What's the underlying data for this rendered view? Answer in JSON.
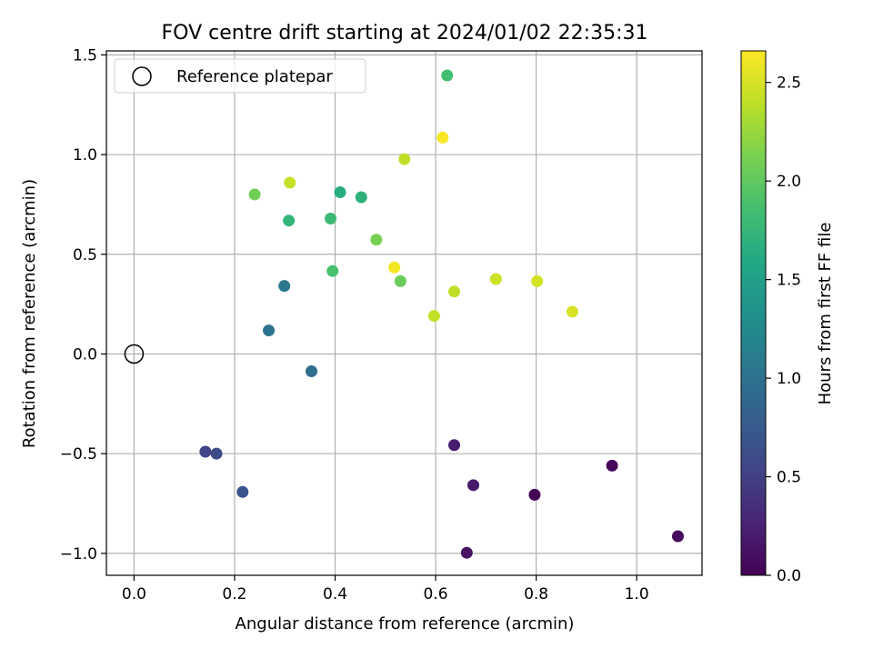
{
  "chart_data": {
    "type": "scatter",
    "title": "FOV centre drift starting at 2024/01/02 22:35:31",
    "xlabel": "Angular distance from reference (arcmin)",
    "ylabel": "Rotation from reference (arcmin)",
    "xlim": [
      -0.055,
      1.13
    ],
    "ylim": [
      -1.11,
      1.52
    ],
    "xticks": [
      "0.0",
      "0.2",
      "0.4",
      "0.6",
      "0.8",
      "1.0"
    ],
    "yticks": [
      "−1.0",
      "−0.5",
      "0.0",
      "0.5",
      "1.0",
      "1.5"
    ],
    "grid": true,
    "legend": {
      "placement": "top-left",
      "entries": [
        "Reference platepar"
      ]
    },
    "reference_point": {
      "x": 0.0,
      "y": 0.0
    },
    "colorbar": {
      "label": "Hours from first FF file",
      "range": [
        0.0,
        2.66
      ],
      "colormap": "viridis",
      "ticks": [
        "0.0",
        "0.5",
        "1.0",
        "1.5",
        "2.0",
        "2.5"
      ]
    },
    "points": [
      {
        "x": 0.797,
        "y": -0.706,
        "hours": 0.02
      },
      {
        "x": 0.951,
        "y": -0.56,
        "hours": 0.05
      },
      {
        "x": 1.082,
        "y": -0.914,
        "hours": 0.08
      },
      {
        "x": 0.662,
        "y": -0.997,
        "hours": 0.14
      },
      {
        "x": 0.675,
        "y": -0.658,
        "hours": 0.18
      },
      {
        "x": 0.637,
        "y": -0.457,
        "hours": 0.22
      },
      {
        "x": 0.142,
        "y": -0.49,
        "hours": 0.55
      },
      {
        "x": 0.164,
        "y": -0.5,
        "hours": 0.6
      },
      {
        "x": 0.216,
        "y": -0.692,
        "hours": 0.68
      },
      {
        "x": 0.353,
        "y": -0.087,
        "hours": 0.95
      },
      {
        "x": 0.268,
        "y": 0.118,
        "hours": 1.0
      },
      {
        "x": 0.299,
        "y": 0.341,
        "hours": 1.05
      },
      {
        "x": 0.41,
        "y": 0.811,
        "hours": 1.65
      },
      {
        "x": 0.452,
        "y": 0.786,
        "hours": 1.7
      },
      {
        "x": 0.308,
        "y": 0.669,
        "hours": 1.75
      },
      {
        "x": 0.391,
        "y": 0.679,
        "hours": 1.8
      },
      {
        "x": 0.623,
        "y": 1.397,
        "hours": 1.85
      },
      {
        "x": 0.395,
        "y": 0.416,
        "hours": 1.88
      },
      {
        "x": 0.53,
        "y": 0.365,
        "hours": 2.05
      },
      {
        "x": 0.24,
        "y": 0.8,
        "hours": 2.08
      },
      {
        "x": 0.482,
        "y": 0.573,
        "hours": 2.12
      },
      {
        "x": 0.538,
        "y": 0.977,
        "hours": 2.4
      },
      {
        "x": 0.31,
        "y": 0.859,
        "hours": 2.43
      },
      {
        "x": 0.637,
        "y": 0.313,
        "hours": 2.4
      },
      {
        "x": 0.597,
        "y": 0.191,
        "hours": 2.42
      },
      {
        "x": 0.72,
        "y": 0.376,
        "hours": 2.45
      },
      {
        "x": 0.802,
        "y": 0.365,
        "hours": 2.48
      },
      {
        "x": 0.872,
        "y": 0.212,
        "hours": 2.5
      },
      {
        "x": 0.518,
        "y": 0.434,
        "hours": 2.62
      },
      {
        "x": 0.614,
        "y": 1.085,
        "hours": 2.64
      }
    ]
  }
}
